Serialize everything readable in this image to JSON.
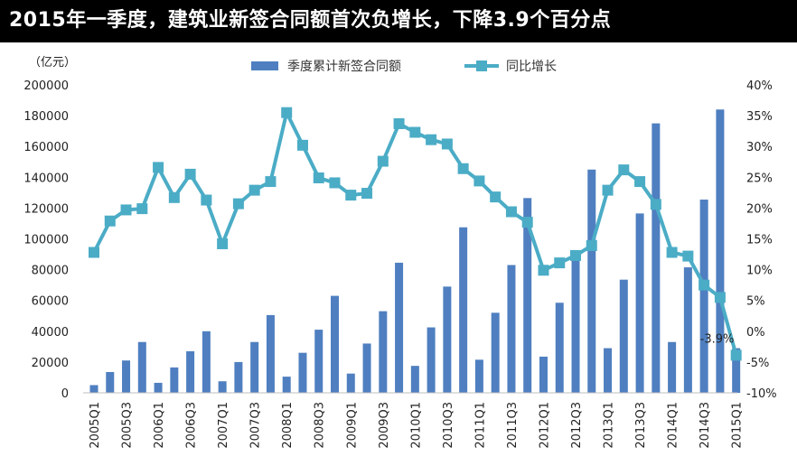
{
  "title": "2015年一季度，建筑业新签合同额首次负增长，下降3.9个百分点",
  "colors": {
    "title_bg": "#000000",
    "title_text": "#ffffff",
    "bar": "#4f7fc0",
    "line": "#4bacc6",
    "marker": "#4bacc6",
    "annotation": "#c0282d"
  },
  "chart_data": {
    "type": "bar+line",
    "y_left_unit": "（亿元）",
    "y_left_ticks": [
      "200000",
      "180000",
      "160000",
      "140000",
      "120000",
      "100000",
      "80000",
      "60000",
      "40000",
      "20000",
      "0"
    ],
    "y_right_ticks": [
      "40%",
      "35%",
      "30%",
      "25%",
      "20%",
      "15%",
      "10%",
      "5%",
      "0%",
      "-5%",
      "-10%"
    ],
    "ylim_left": [
      0,
      200000
    ],
    "ylim_right": [
      -10,
      40
    ],
    "x_tick_labels": [
      "2005Q1",
      "2005Q3",
      "2006Q1",
      "2006Q3",
      "2007Q1",
      "2007Q3",
      "2008Q1",
      "2008Q3",
      "2009Q1",
      "2009Q3",
      "2010Q1",
      "2010Q3",
      "2011Q1",
      "2011Q3",
      "2012Q1",
      "2012Q3",
      "2013Q1",
      "2013Q3",
      "2014Q1",
      "2014Q3",
      "2015Q1"
    ],
    "categories": [
      "2005Q1",
      "2005Q2",
      "2005Q3",
      "2005Q4",
      "2006Q1",
      "2006Q2",
      "2006Q3",
      "2006Q4",
      "2007Q1",
      "2007Q2",
      "2007Q3",
      "2007Q4",
      "2008Q1",
      "2008Q2",
      "2008Q3",
      "2008Q4",
      "2009Q1",
      "2009Q2",
      "2009Q3",
      "2009Q4",
      "2010Q1",
      "2010Q2",
      "2010Q3",
      "2010Q4",
      "2011Q1",
      "2011Q2",
      "2011Q3",
      "2011Q4",
      "2012Q1",
      "2012Q2",
      "2012Q3",
      "2012Q4",
      "2013Q1",
      "2013Q2",
      "2013Q3",
      "2013Q4",
      "2014Q1",
      "2014Q2",
      "2014Q3",
      "2014Q4",
      "2015Q1"
    ],
    "series": [
      {
        "name": "季度累计新签合同额",
        "type": "bar",
        "axis": "left",
        "values": [
          5000,
          13500,
          21000,
          33000,
          6500,
          16500,
          27000,
          40000,
          7500,
          20000,
          33000,
          50500,
          10500,
          26000,
          41000,
          63000,
          12500,
          32000,
          53000,
          84500,
          17500,
          42500,
          69000,
          107500,
          21500,
          52000,
          83000,
          126500,
          23500,
          58500,
          91000,
          145000,
          29000,
          73500,
          116500,
          175000,
          33000,
          81500,
          125500,
          184000,
          29000
        ]
      },
      {
        "name": "同比增长",
        "type": "line",
        "axis": "right",
        "values": [
          12.8,
          17.9,
          19.7,
          19.9,
          26.6,
          21.7,
          25.5,
          21.3,
          14.2,
          20.7,
          22.9,
          24.3,
          35.5,
          30.2,
          24.9,
          24.1,
          22.1,
          22.4,
          27.6,
          33.7,
          32.3,
          31.1,
          30.4,
          26.4,
          24.4,
          21.8,
          19.4,
          17.7,
          9.9,
          11.1,
          12.3,
          13.9,
          22.9,
          26.2,
          24.3,
          20.6,
          12.8,
          12.2,
          7.5,
          5.5,
          -3.9
        ]
      }
    ],
    "annotations": [
      {
        "text": "-3.9%",
        "category": "2015Q1",
        "value": -3.9
      }
    ],
    "grid": false,
    "legend": "top-center"
  }
}
